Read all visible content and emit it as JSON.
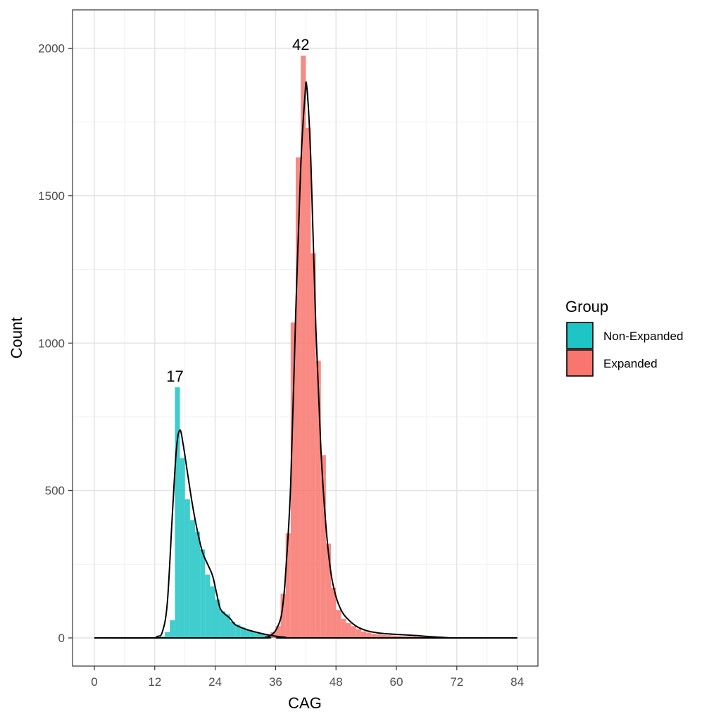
{
  "chart_data": {
    "type": "histogram-density",
    "xlabel": "CAG",
    "ylabel": "Count",
    "xlim": [
      -4,
      88
    ],
    "ylim": [
      -100,
      2120
    ],
    "x_ticks": [
      0,
      12,
      24,
      36,
      48,
      60,
      72,
      84
    ],
    "y_ticks": [
      0,
      500,
      1000,
      1500,
      2000
    ],
    "grid": true,
    "legend": {
      "title": "Group",
      "position": "right",
      "entries": [
        {
          "label": "Non-Expanded",
          "color": "#1fc4c6"
        },
        {
          "label": "Expanded",
          "color": "#f8766d"
        }
      ]
    },
    "annotations": [
      {
        "text": "17",
        "x": 17,
        "y": 850
      },
      {
        "text": "42",
        "x": 42,
        "y": 1975
      }
    ],
    "series": [
      {
        "name": "Non-Expanded",
        "color": "#1fc4c6",
        "bins": [
          {
            "x": 13,
            "count": 5
          },
          {
            "x": 14,
            "count": 20
          },
          {
            "x": 15,
            "count": 60
          },
          {
            "x": 16,
            "count": 850
          },
          {
            "x": 17,
            "count": 610
          },
          {
            "x": 18,
            "count": 470
          },
          {
            "x": 19,
            "count": 400
          },
          {
            "x": 20,
            "count": 360
          },
          {
            "x": 21,
            "count": 300
          },
          {
            "x": 22,
            "count": 215
          },
          {
            "x": 23,
            "count": 175
          },
          {
            "x": 24,
            "count": 130
          },
          {
            "x": 25,
            "count": 90
          },
          {
            "x": 26,
            "count": 80
          },
          {
            "x": 27,
            "count": 55
          },
          {
            "x": 28,
            "count": 45
          },
          {
            "x": 29,
            "count": 35
          },
          {
            "x": 30,
            "count": 28
          },
          {
            "x": 31,
            "count": 22
          },
          {
            "x": 32,
            "count": 16
          },
          {
            "x": 33,
            "count": 12
          },
          {
            "x": 34,
            "count": 9
          },
          {
            "x": 35,
            "count": 5
          }
        ],
        "density": [
          [
            0,
            0
          ],
          [
            11,
            0
          ],
          [
            12.5,
            5
          ],
          [
            13.5,
            20
          ],
          [
            14.5,
            120
          ],
          [
            15.5,
            420
          ],
          [
            16.3,
            640
          ],
          [
            17,
            705
          ],
          [
            17.7,
            650
          ],
          [
            18.5,
            560
          ],
          [
            19.5,
            450
          ],
          [
            20.5,
            360
          ],
          [
            21.5,
            290
          ],
          [
            22.5,
            250
          ],
          [
            23.5,
            210
          ],
          [
            24.3,
            150
          ],
          [
            25,
            100
          ],
          [
            26,
            80
          ],
          [
            27,
            65
          ],
          [
            28,
            45
          ],
          [
            30,
            30
          ],
          [
            32,
            20
          ],
          [
            34,
            12
          ],
          [
            36,
            6
          ],
          [
            38,
            2
          ],
          [
            40,
            0
          ],
          [
            84,
            0
          ]
        ]
      },
      {
        "name": "Expanded",
        "color": "#f8766d",
        "bins": [
          {
            "x": 35,
            "count": 20
          },
          {
            "x": 36,
            "count": 40
          },
          {
            "x": 37,
            "count": 150
          },
          {
            "x": 38,
            "count": 355
          },
          {
            "x": 39,
            "count": 1070
          },
          {
            "x": 40,
            "count": 1630
          },
          {
            "x": 41,
            "count": 1975
          },
          {
            "x": 42,
            "count": 1730
          },
          {
            "x": 43,
            "count": 1305
          },
          {
            "x": 44,
            "count": 940
          },
          {
            "x": 45,
            "count": 620
          },
          {
            "x": 46,
            "count": 320
          },
          {
            "x": 47,
            "count": 170
          },
          {
            "x": 48,
            "count": 95
          },
          {
            "x": 49,
            "count": 65
          },
          {
            "x": 50,
            "count": 50
          },
          {
            "x": 51,
            "count": 40
          },
          {
            "x": 52,
            "count": 30
          },
          {
            "x": 53,
            "count": 22
          },
          {
            "x": 54,
            "count": 18
          },
          {
            "x": 55,
            "count": 14
          },
          {
            "x": 56,
            "count": 12
          },
          {
            "x": 57,
            "count": 10
          },
          {
            "x": 58,
            "count": 9
          },
          {
            "x": 59,
            "count": 8
          },
          {
            "x": 60,
            "count": 7
          },
          {
            "x": 61,
            "count": 6
          },
          {
            "x": 62,
            "count": 6
          },
          {
            "x": 63,
            "count": 5
          },
          {
            "x": 64,
            "count": 4
          },
          {
            "x": 65,
            "count": 3
          },
          {
            "x": 66,
            "count": 3
          },
          {
            "x": 67,
            "count": 2
          },
          {
            "x": 68,
            "count": 1
          }
        ],
        "density": [
          [
            0,
            0
          ],
          [
            32,
            0
          ],
          [
            34,
            2
          ],
          [
            35,
            8
          ],
          [
            36,
            25
          ],
          [
            37,
            65
          ],
          [
            37.5,
            120
          ],
          [
            38,
            220
          ],
          [
            39,
            520
          ],
          [
            40,
            1100
          ],
          [
            41,
            1600
          ],
          [
            41.8,
            1830
          ],
          [
            42.2,
            1870
          ],
          [
            43,
            1620
          ],
          [
            44,
            1050
          ],
          [
            45,
            640
          ],
          [
            46,
            380
          ],
          [
            47,
            220
          ],
          [
            48,
            140
          ],
          [
            49,
            95
          ],
          [
            50,
            70
          ],
          [
            52,
            40
          ],
          [
            54,
            25
          ],
          [
            56,
            18
          ],
          [
            58,
            14
          ],
          [
            60,
            12
          ],
          [
            62,
            10
          ],
          [
            64,
            8
          ],
          [
            66,
            5
          ],
          [
            68,
            3
          ],
          [
            70,
            1
          ],
          [
            72,
            0
          ],
          [
            84,
            0
          ]
        ]
      }
    ]
  }
}
